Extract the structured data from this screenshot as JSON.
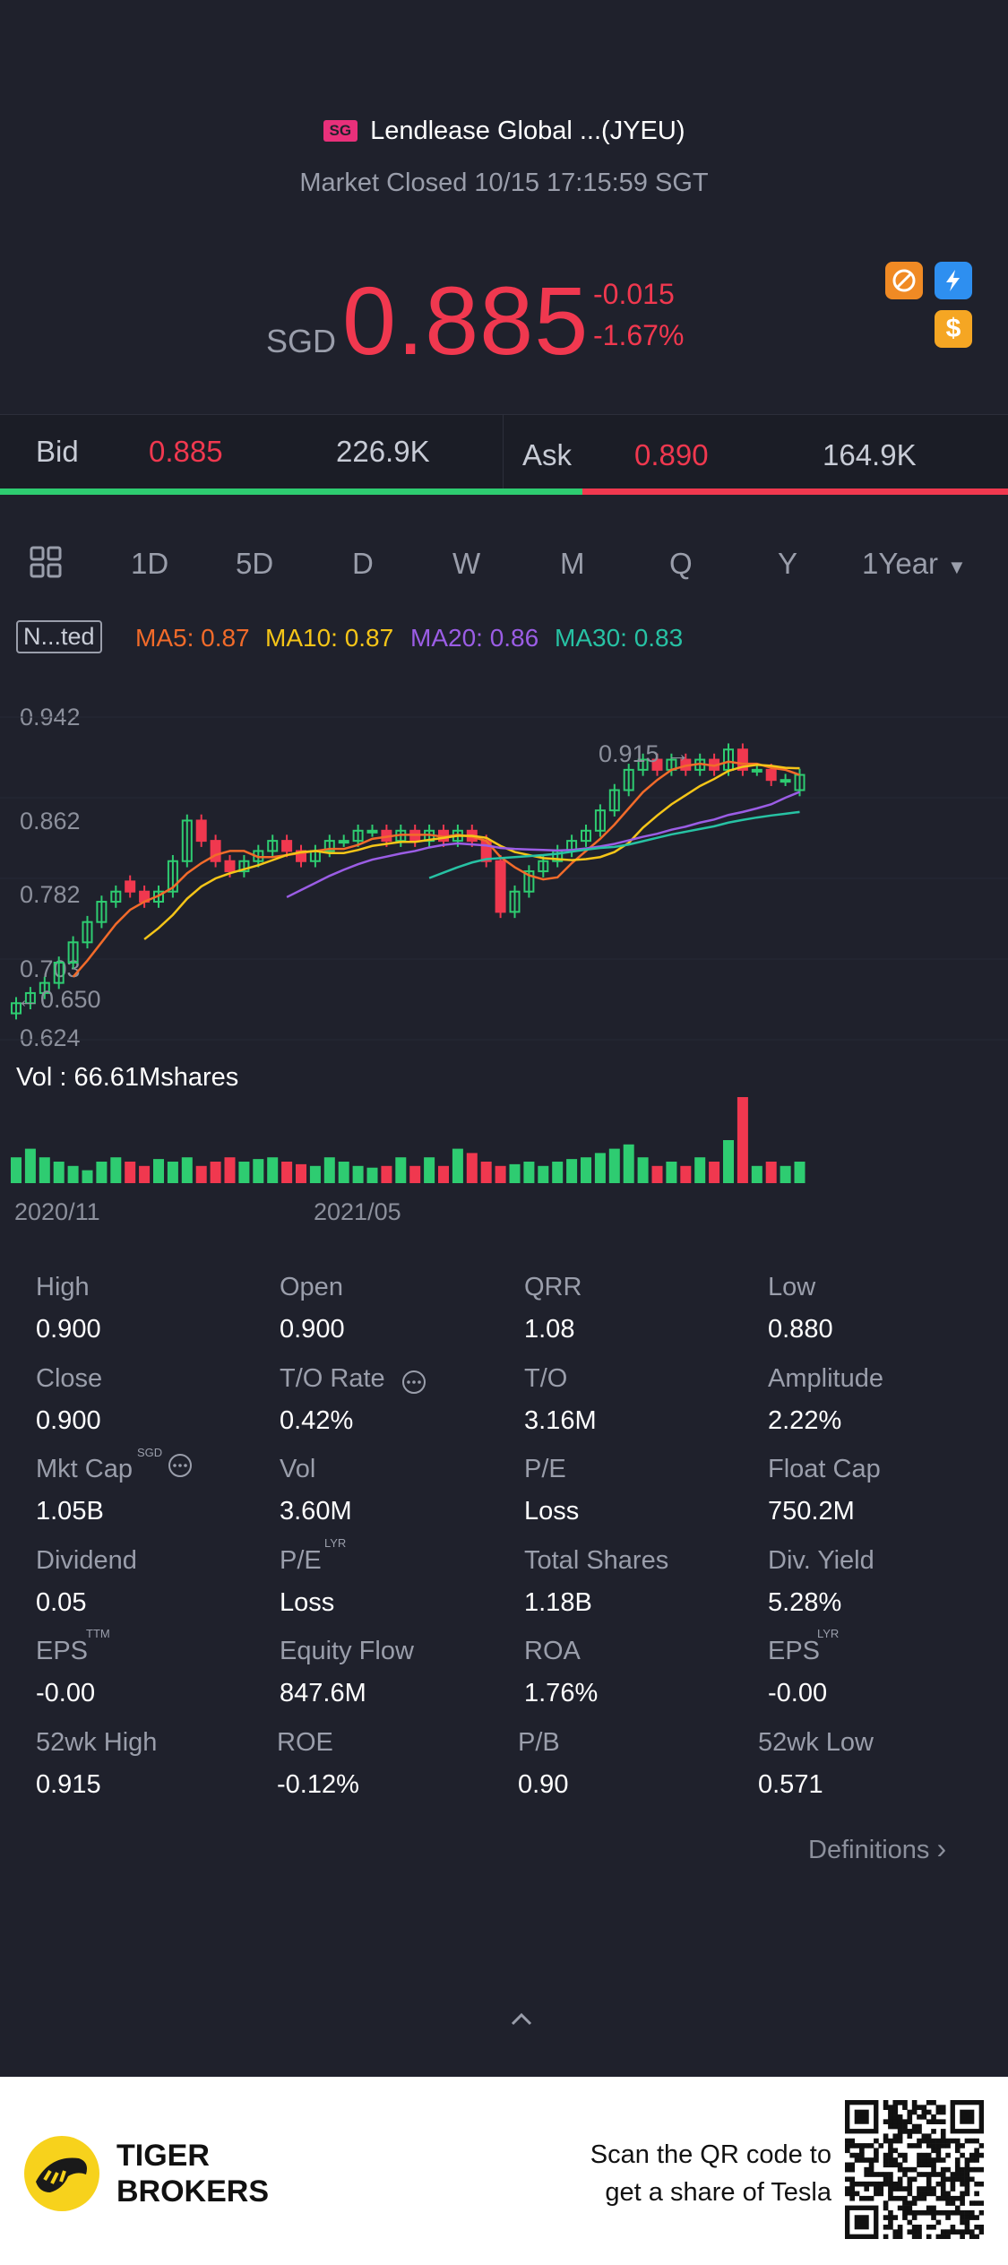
{
  "header": {
    "market_badge": "SG",
    "title": "Lendlease Global ...(JYEU)",
    "status": "Market Closed 10/15 17:15:59 SGT"
  },
  "quote": {
    "currency": "SGD",
    "price": "0.885",
    "change": "-0.015",
    "change_pct": "-1.67%",
    "price_color": "#f0384f"
  },
  "bid_ask": {
    "bid_label": "Bid",
    "bid_price": "0.885",
    "bid_size": "226.9K",
    "ask_label": "Ask",
    "ask_price": "0.890",
    "ask_size": "164.9K",
    "bid_ratio": 0.578
  },
  "period_tabs": {
    "items": [
      "1D",
      "5D",
      "D",
      "W",
      "M",
      "Q",
      "Y"
    ],
    "selected": "1Year",
    "grid_icon": "grid-icon"
  },
  "indicators": {
    "adjust_label": "N...ted",
    "ma5": "MA5: 0.87",
    "ma10": "MA10: 0.87",
    "ma20": "MA20: 0.86",
    "ma30": "MA30: 0.83",
    "colors": {
      "ma5": "#f26b2a",
      "ma10": "#f5c518",
      "ma20": "#9b5de5",
      "ma30": "#27c2a4"
    }
  },
  "chart_data": {
    "type": "candlestick",
    "y_ticks": [
      "0.942",
      "0.862",
      "0.782",
      "0.703",
      "0.624"
    ],
    "ylim": [
      0.624,
      0.942
    ],
    "annotations": {
      "high": "0.915",
      "low": "0.650"
    },
    "volume_label": "Vol  : 66.61Mshares",
    "x_ticks": [
      "2020/11",
      "2021/05"
    ],
    "closes": [
      0.66,
      0.67,
      0.68,
      0.7,
      0.72,
      0.74,
      0.76,
      0.77,
      0.77,
      0.76,
      0.77,
      0.8,
      0.84,
      0.82,
      0.8,
      0.79,
      0.8,
      0.81,
      0.82,
      0.81,
      0.8,
      0.81,
      0.82,
      0.82,
      0.83,
      0.83,
      0.82,
      0.83,
      0.82,
      0.83,
      0.82,
      0.83,
      0.82,
      0.8,
      0.75,
      0.77,
      0.79,
      0.8,
      0.81,
      0.82,
      0.83,
      0.85,
      0.87,
      0.89,
      0.9,
      0.89,
      0.9,
      0.89,
      0.9,
      0.89,
      0.91,
      0.89,
      0.89,
      0.88,
      0.88,
      0.885
    ],
    "opens": [
      0.65,
      0.66,
      0.67,
      0.68,
      0.7,
      0.72,
      0.74,
      0.76,
      0.78,
      0.77,
      0.76,
      0.77,
      0.8,
      0.84,
      0.82,
      0.8,
      0.79,
      0.8,
      0.81,
      0.82,
      0.81,
      0.8,
      0.81,
      0.82,
      0.82,
      0.83,
      0.83,
      0.82,
      0.83,
      0.82,
      0.83,
      0.82,
      0.83,
      0.82,
      0.8,
      0.75,
      0.77,
      0.79,
      0.8,
      0.81,
      0.82,
      0.83,
      0.85,
      0.87,
      0.89,
      0.9,
      0.89,
      0.9,
      0.89,
      0.9,
      0.89,
      0.91,
      0.89,
      0.89,
      0.88,
      0.87
    ],
    "volumes": [
      0.3,
      0.4,
      0.3,
      0.25,
      0.2,
      0.15,
      0.25,
      0.3,
      0.25,
      0.2,
      0.28,
      0.25,
      0.3,
      0.2,
      0.25,
      0.3,
      0.25,
      0.28,
      0.3,
      0.25,
      0.22,
      0.2,
      0.3,
      0.25,
      0.2,
      0.18,
      0.2,
      0.3,
      0.2,
      0.3,
      0.2,
      0.4,
      0.35,
      0.25,
      0.2,
      0.22,
      0.25,
      0.2,
      0.25,
      0.28,
      0.3,
      0.35,
      0.4,
      0.45,
      0.3,
      0.2,
      0.25,
      0.2,
      0.3,
      0.25,
      0.5,
      1.0,
      0.2,
      0.25,
      0.2,
      0.25
    ]
  },
  "stats": [
    {
      "label": "High",
      "value": "0.900"
    },
    {
      "label": "Open",
      "value": "0.900"
    },
    {
      "label": "QRR",
      "value": "1.08"
    },
    {
      "label": "Low",
      "value": "0.880"
    },
    {
      "label": "Close",
      "value": "0.900"
    },
    {
      "label": "T/O Rate",
      "value": "0.42%"
    },
    {
      "label": "T/O",
      "value": "3.16M"
    },
    {
      "label": "Amplitude",
      "value": "2.22%"
    },
    {
      "label": "Mkt Cap",
      "value": "1.05B"
    },
    {
      "label": "Vol",
      "value": "3.60M"
    },
    {
      "label": "P/E",
      "value": "Loss"
    },
    {
      "label": "Float Cap",
      "value": "750.2M"
    },
    {
      "label": "Dividend",
      "value": "0.05"
    },
    {
      "label": "P/E",
      "value": "Loss"
    },
    {
      "label": "Total Shares",
      "value": "1.18B"
    },
    {
      "label": "Div. Yield",
      "value": "5.28%"
    },
    {
      "label": "EPS",
      "value": "-0.00"
    },
    {
      "label": "Equity Flow",
      "value": "847.6M"
    },
    {
      "label": "ROA",
      "value": "1.76%"
    },
    {
      "label": "EPS",
      "value": "-0.00"
    },
    {
      "label": "52wk High",
      "value": "0.915"
    },
    {
      "label": "ROE",
      "value": "-0.12%"
    },
    {
      "label": "P/B",
      "value": "0.90"
    },
    {
      "label": "52wk Low",
      "value": "0.571"
    }
  ],
  "stat_sups": {
    "mktcap": "SGD",
    "pe_lyr": "LYR",
    "eps_ttm": "TTM",
    "eps_lyr": "LYR"
  },
  "definitions_link": "Definitions",
  "footer": {
    "brand_line1": "TIGER",
    "brand_line2": "BROKERS",
    "promo_line1": "Scan the QR code to",
    "promo_line2": "get a share of Tesla"
  }
}
